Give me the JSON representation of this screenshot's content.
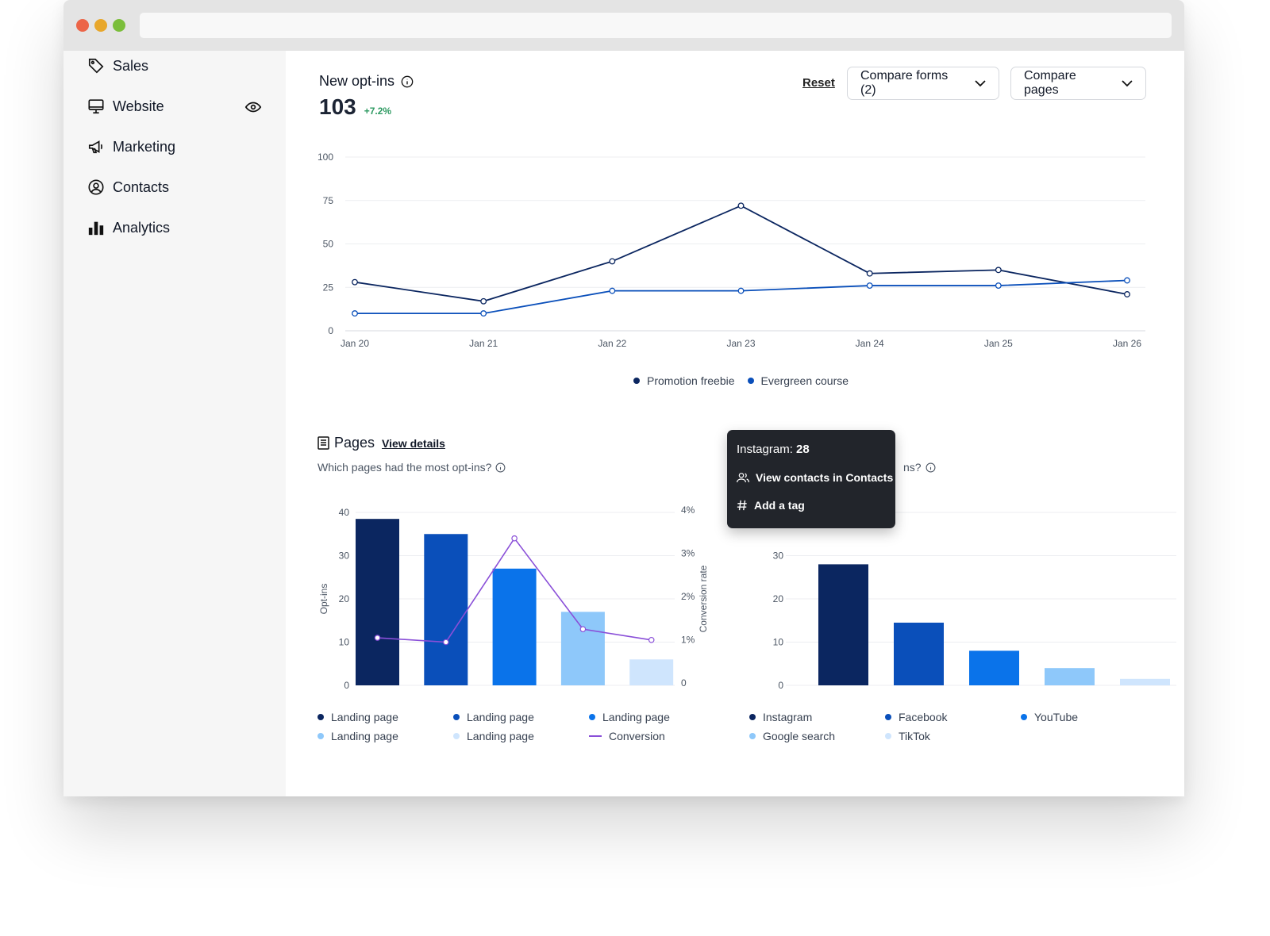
{
  "sidebar": {
    "items": [
      {
        "label": "Sales",
        "icon": "tag-icon"
      },
      {
        "label": "Website",
        "icon": "monitor-icon"
      },
      {
        "label": "Marketing",
        "icon": "megaphone-icon"
      },
      {
        "label": "Contacts",
        "icon": "user-circle-icon"
      },
      {
        "label": "Analytics",
        "icon": "bar-chart-icon"
      }
    ]
  },
  "optins": {
    "title": "New opt-ins",
    "total": "103",
    "delta": "+7.2%",
    "reset_label": "Reset",
    "compare_forms_label": "Compare forms (2)",
    "compare_pages_label": "Compare pages"
  },
  "pages_section": {
    "title": "Pages",
    "view_details": "View details",
    "subtitle": "Which pages had the most opt-ins?"
  },
  "sources_section": {
    "subtitle_visible": "ns?"
  },
  "tooltip": {
    "label": "Instagram:",
    "value": "28",
    "view_contacts": "View contacts in Contacts",
    "add_tag": "Add a tag"
  },
  "colors": {
    "navy": "#0b2660",
    "blue": "#0a4fba",
    "bright_blue": "#0a73ea",
    "light_blue": "#8ec8fa",
    "pale_blue": "#cfe5fd",
    "purple": "#8a4fd8",
    "accent_green": "#2e9a62"
  },
  "chart_data": [
    {
      "type": "line",
      "title": "",
      "x": [
        "Jan 20",
        "Jan 21",
        "Jan 22",
        "Jan 23",
        "Jan 24",
        "Jan 25",
        "Jan 26"
      ],
      "ylim": [
        0,
        100
      ],
      "yticks": [
        0,
        25,
        50,
        75,
        100
      ],
      "grid": true,
      "legend_position": "bottom-center",
      "series": [
        {
          "name": "Promotion freebie",
          "color": "#0b2660",
          "values": [
            28,
            17,
            40,
            72,
            33,
            35,
            21
          ]
        },
        {
          "name": "Evergreen course",
          "color": "#0a4fba",
          "values": [
            10,
            10,
            23,
            23,
            26,
            26,
            29
          ]
        }
      ]
    },
    {
      "type": "bar",
      "title": "Pages",
      "ylabel": "Opt-ins",
      "y2label": "Conversion rate",
      "ylim": [
        0,
        40
      ],
      "yticks": [
        0,
        10,
        20,
        30,
        40
      ],
      "y2lim": [
        0,
        4
      ],
      "y2ticks": [
        "0",
        "1%",
        "2%",
        "3%",
        "4%"
      ],
      "grid": true,
      "legend_position": "bottom",
      "categories": [
        "Landing page",
        "Landing page",
        "Landing page",
        "Landing page",
        "Landing page"
      ],
      "values": [
        38.5,
        35,
        27,
        17,
        6
      ],
      "colors": [
        "#0b2660",
        "#0a4fba",
        "#0a73ea",
        "#8ec8fa",
        "#cfe5fd"
      ],
      "line_series": {
        "name": "Conversion",
        "color": "#8a4fd8",
        "values": [
          1.1,
          1.0,
          3.4,
          1.3,
          1.05
        ]
      }
    },
    {
      "type": "bar",
      "title": "",
      "ylim": [
        0,
        40
      ],
      "yticks": [
        0,
        10,
        20,
        30
      ],
      "grid": true,
      "legend_position": "bottom",
      "categories": [
        "Instagram",
        "Facebook",
        "YouTube",
        "Google search",
        "TikTok"
      ],
      "values": [
        28,
        14.5,
        8,
        4,
        1.5
      ],
      "colors": [
        "#0b2660",
        "#0a4fba",
        "#0a73ea",
        "#8ec8fa",
        "#cfe5fd"
      ]
    }
  ]
}
